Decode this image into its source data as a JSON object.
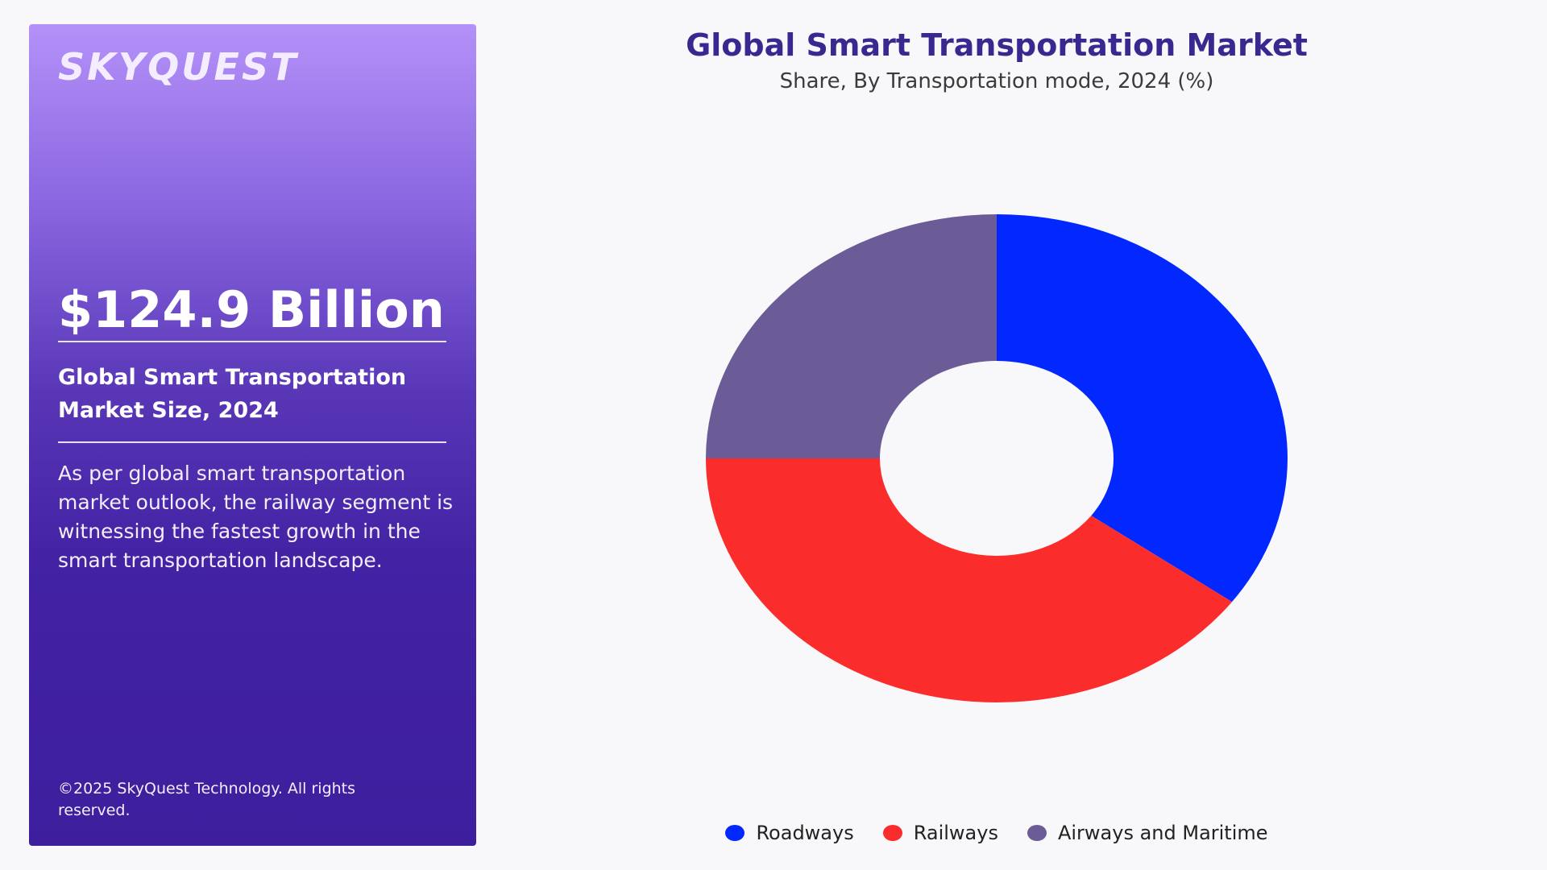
{
  "panel": {
    "logo": "SKYQUEST",
    "market_value": "$124.9 Billion",
    "size_label": "Global Smart Transportation Market Size, 2024",
    "description": "As per global smart transportation market outlook, the railway segment is witnessing the fastest growth in the smart transportation landscape.",
    "copyright": "©2025 SkyQuest Technology. All rights reserved."
  },
  "chart_data": {
    "type": "pie",
    "title": "Global Smart Transportation Market",
    "subtitle": "Share, By Transportation mode, 2024 (%)",
    "categories": [
      "Roadways",
      "Railways",
      "Airways and Maritime"
    ],
    "values": [
      35,
      40,
      25
    ],
    "colors": [
      "#0327ff",
      "#fb2c2c",
      "#6b5b96"
    ],
    "legend_position": "bottom"
  }
}
